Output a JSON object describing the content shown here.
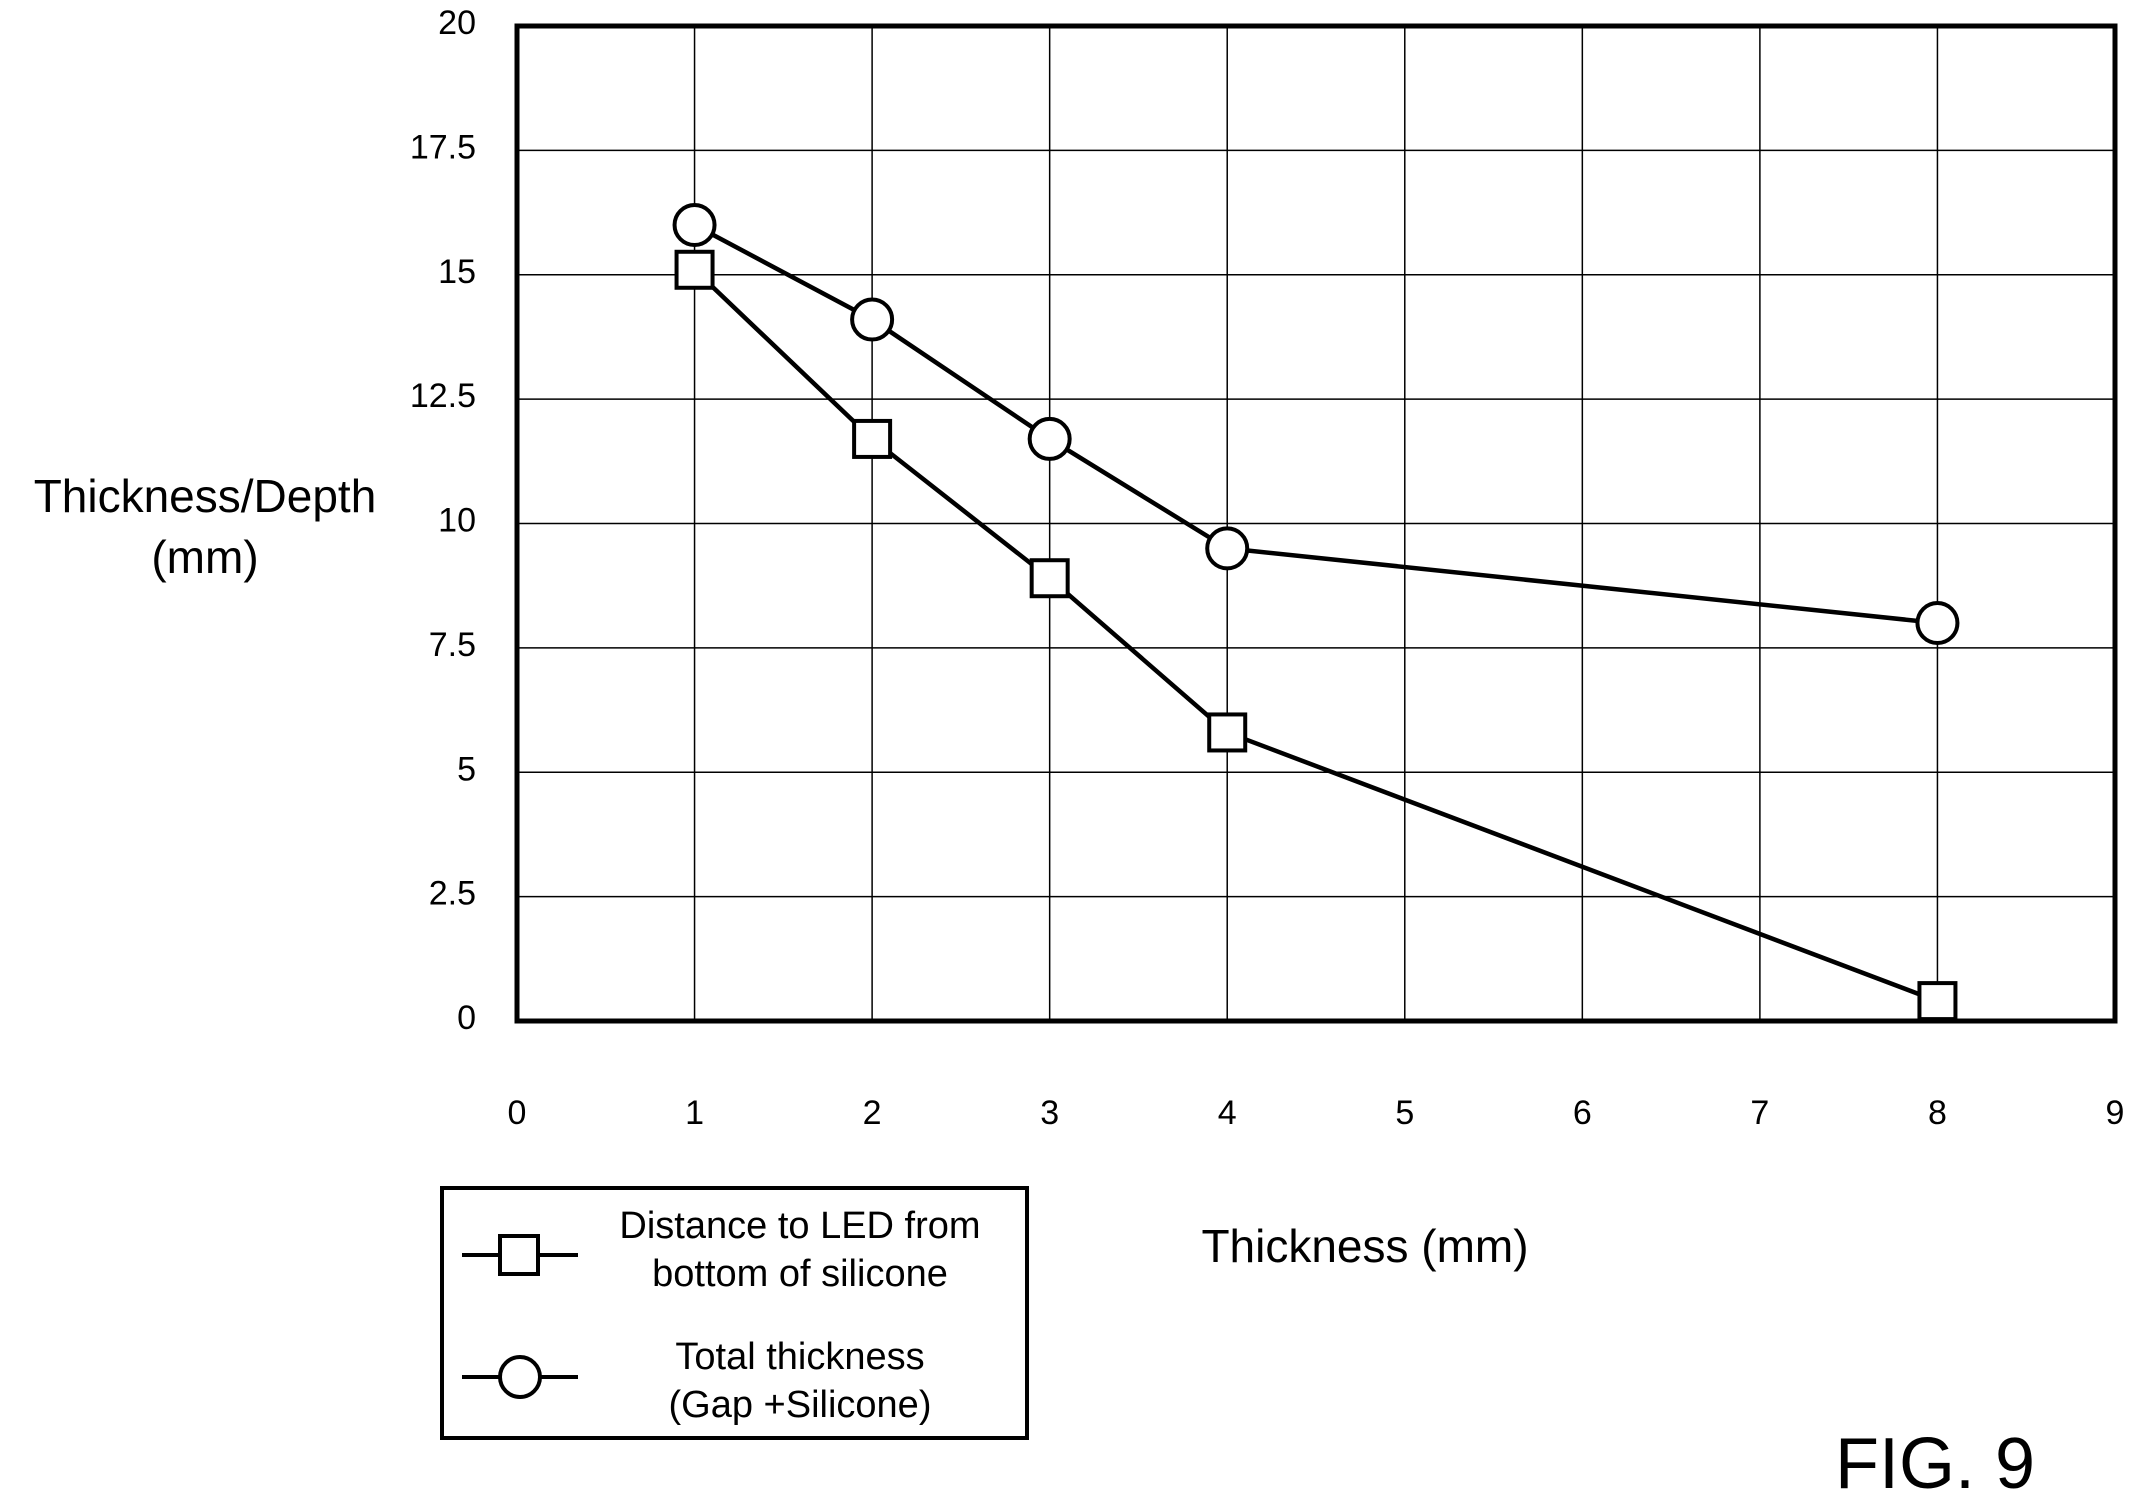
{
  "chart_data": {
    "type": "line",
    "xlabel": "Thickness (mm)",
    "ylabel_lines": [
      "Thickness/Depth",
      "(mm)"
    ],
    "figure_label": "FIG. 9",
    "xlim": [
      0,
      9
    ],
    "ylim": [
      0,
      20
    ],
    "x_ticks": [
      "0",
      "1",
      "2",
      "3",
      "4",
      "5",
      "6",
      "7",
      "8",
      "9"
    ],
    "y_ticks": [
      "0",
      "2.5",
      "5",
      "7.5",
      "10",
      "12.5",
      "15",
      "17.5",
      "20"
    ],
    "grid": true,
    "legend_position": "bottom-left",
    "series": [
      {
        "name_lines": [
          "Distance to LED from",
          "bottom of silicone"
        ],
        "marker": "square",
        "x": [
          1,
          2,
          3,
          4,
          8
        ],
        "y": [
          15.1,
          11.7,
          8.9,
          5.8,
          0.4
        ]
      },
      {
        "name_lines": [
          "Total thickness",
          "(Gap +Silicone)"
        ],
        "marker": "circle",
        "x": [
          1,
          2,
          3,
          4,
          8
        ],
        "y": [
          16.0,
          14.1,
          11.7,
          9.5,
          8.0
        ]
      }
    ]
  }
}
